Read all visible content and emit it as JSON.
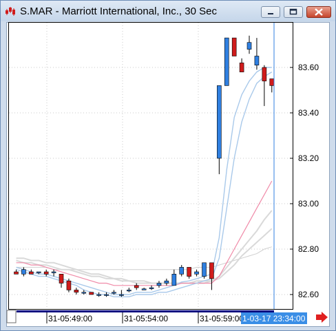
{
  "window": {
    "title": "S.MAR - Marriott International, Inc., 30 Sec",
    "buttons": [
      "minimize",
      "maximize",
      "close"
    ],
    "icons": [
      "app-icon",
      "minimize-icon",
      "maximize-icon",
      "close-icon",
      "scroll-right-arrow-icon"
    ]
  },
  "colors": {
    "up": "#2f7fe0",
    "down": "#d01c1c",
    "ma_fast": "#a9c9ea",
    "ma_slow": "#d9d9d9",
    "ma_pink": "#f08aa8",
    "time_marker": "#2f7fe0",
    "scroll_track": "#000080"
  },
  "chart_data": {
    "type": "candlestick",
    "y_ticks": [
      "83.60",
      "83.40",
      "83.20",
      "83.00",
      "82.80",
      "82.60"
    ],
    "y_tick_values": [
      83.6,
      83.4,
      83.2,
      83.0,
      82.8,
      82.6
    ],
    "ylim": [
      82.555,
      83.755
    ],
    "x_ticks": [
      "31-05:49:00",
      "31-05:54:00",
      "31-05:59:00"
    ],
    "current_time_label": "1-03-17 23:34:00",
    "candles": [
      {
        "o": 82.7,
        "h": 82.71,
        "l": 82.69,
        "c": 82.69
      },
      {
        "o": 82.69,
        "h": 82.72,
        "l": 82.68,
        "c": 82.71
      },
      {
        "o": 82.7,
        "h": 82.71,
        "l": 82.69,
        "c": 82.69
      },
      {
        "o": 82.7,
        "h": 82.7,
        "l": 82.69,
        "c": 82.7
      },
      {
        "o": 82.7,
        "h": 82.71,
        "l": 82.68,
        "c": 82.69
      },
      {
        "o": 82.7,
        "h": 82.71,
        "l": 82.68,
        "c": 82.7
      },
      {
        "o": 82.69,
        "h": 82.69,
        "l": 82.63,
        "c": 82.65
      },
      {
        "o": 82.66,
        "h": 82.67,
        "l": 82.61,
        "c": 82.62
      },
      {
        "o": 82.62,
        "h": 82.63,
        "l": 82.6,
        "c": 82.61
      },
      {
        "o": 82.61,
        "h": 82.62,
        "l": 82.6,
        "c": 82.61
      },
      {
        "o": 82.61,
        "h": 82.61,
        "l": 82.6,
        "c": 82.6
      },
      {
        "o": 82.6,
        "h": 82.61,
        "l": 82.59,
        "c": 82.6
      },
      {
        "o": 82.6,
        "h": 82.61,
        "l": 82.59,
        "c": 82.6
      },
      {
        "o": 82.61,
        "h": 82.62,
        "l": 82.6,
        "c": 82.61
      },
      {
        "o": 82.6,
        "h": 82.62,
        "l": 82.59,
        "c": 82.6
      },
      {
        "o": 82.62,
        "h": 82.63,
        "l": 82.61,
        "c": 82.62
      },
      {
        "o": 82.64,
        "h": 82.65,
        "l": 82.62,
        "c": 82.63
      },
      {
        "o": 82.62,
        "h": 82.63,
        "l": 82.62,
        "c": 82.625
      },
      {
        "o": 82.63,
        "h": 82.64,
        "l": 82.62,
        "c": 82.63
      },
      {
        "o": 82.64,
        "h": 82.66,
        "l": 82.63,
        "c": 82.65
      },
      {
        "o": 82.65,
        "h": 82.67,
        "l": 82.64,
        "c": 82.66
      },
      {
        "o": 82.64,
        "h": 82.71,
        "l": 82.64,
        "c": 82.69
      },
      {
        "o": 82.69,
        "h": 82.73,
        "l": 82.68,
        "c": 82.72
      },
      {
        "o": 82.72,
        "h": 82.72,
        "l": 82.67,
        "c": 82.68
      },
      {
        "o": 82.69,
        "h": 82.71,
        "l": 82.68,
        "c": 82.7
      },
      {
        "o": 82.68,
        "h": 82.74,
        "l": 82.67,
        "c": 82.74
      },
      {
        "o": 82.74,
        "h": 82.74,
        "l": 82.62,
        "c": 82.67
      },
      {
        "o": 83.2,
        "h": 83.52,
        "l": 83.13,
        "c": 83.52
      },
      {
        "o": 83.52,
        "h": 83.73,
        "l": 83.52,
        "c": 83.73
      },
      {
        "o": 83.73,
        "h": 83.73,
        "l": 83.65,
        "c": 83.65
      },
      {
        "o": 83.62,
        "h": 83.64,
        "l": 83.58,
        "c": 83.58
      },
      {
        "o": 83.68,
        "h": 83.74,
        "l": 83.66,
        "c": 83.71
      },
      {
        "o": 83.61,
        "h": 83.73,
        "l": 83.59,
        "c": 83.65
      },
      {
        "o": 83.6,
        "h": 83.61,
        "l": 83.43,
        "c": 83.54
      },
      {
        "o": 83.55,
        "h": 83.55,
        "l": 83.49,
        "c": 83.52
      }
    ],
    "ma_fast": [
      82.72,
      82.71,
      82.7,
      82.69,
      82.69,
      82.68,
      82.67,
      82.66,
      82.65,
      82.64,
      82.63,
      82.62,
      82.61,
      82.6,
      82.6,
      82.6,
      82.61,
      82.61,
      82.61,
      82.62,
      82.63,
      82.64,
      82.655,
      82.66,
      82.67,
      82.68,
      82.69,
      82.85,
      83.15,
      83.38,
      83.48,
      83.54,
      83.58,
      83.6,
      83.6
    ],
    "ma_fast2": [
      82.71,
      82.7,
      82.69,
      82.68,
      82.68,
      82.67,
      82.66,
      82.65,
      82.64,
      82.62,
      82.61,
      82.6,
      82.6,
      82.59,
      82.59,
      82.59,
      82.6,
      82.6,
      82.6,
      82.61,
      82.61,
      82.62,
      82.63,
      82.64,
      82.65,
      82.66,
      82.67,
      82.76,
      82.98,
      83.2,
      83.36,
      83.46,
      83.53,
      83.56,
      83.58
    ],
    "ma_pink": [
      82.74,
      82.74,
      82.73,
      82.73,
      82.72,
      82.71,
      82.7,
      82.69,
      82.68,
      82.67,
      82.66,
      82.65,
      82.65,
      82.64,
      82.64,
      82.64,
      82.64,
      82.64,
      82.64,
      82.64,
      82.64,
      82.64,
      82.65,
      82.65,
      82.65,
      82.65,
      82.65,
      82.68,
      82.74,
      82.8,
      82.86,
      82.92,
      82.98,
      83.04,
      83.1
    ],
    "ma_gray1": [
      82.76,
      82.76,
      82.75,
      82.75,
      82.74,
      82.74,
      82.73,
      82.72,
      82.71,
      82.7,
      82.69,
      82.69,
      82.68,
      82.67,
      82.67,
      82.66,
      82.66,
      82.66,
      82.65,
      82.65,
      82.65,
      82.65,
      82.65,
      82.65,
      82.66,
      82.66,
      82.66,
      82.68,
      82.72,
      82.76,
      82.8,
      82.84,
      82.88,
      82.93,
      82.97
    ],
    "ma_gray2": [
      82.75,
      82.74,
      82.74,
      82.73,
      82.73,
      82.72,
      82.71,
      82.71,
      82.7,
      82.69,
      82.68,
      82.68,
      82.67,
      82.67,
      82.66,
      82.66,
      82.65,
      82.65,
      82.65,
      82.65,
      82.65,
      82.65,
      82.65,
      82.65,
      82.65,
      82.65,
      82.66,
      82.67,
      82.7,
      82.73,
      82.77,
      82.8,
      82.83,
      82.86,
      82.89
    ],
    "ma_gray3": [
      82.72,
      82.72,
      82.72,
      82.72,
      82.72,
      82.71,
      82.71,
      82.71,
      82.71,
      82.71,
      82.71,
      82.71,
      82.71,
      82.71,
      82.71,
      82.71,
      82.71,
      82.71,
      82.71,
      82.71,
      82.71,
      82.71,
      82.71,
      82.71,
      82.72,
      82.72,
      82.72,
      82.73,
      82.74,
      82.75,
      82.76,
      82.77,
      82.78,
      82.8,
      82.81
    ]
  }
}
